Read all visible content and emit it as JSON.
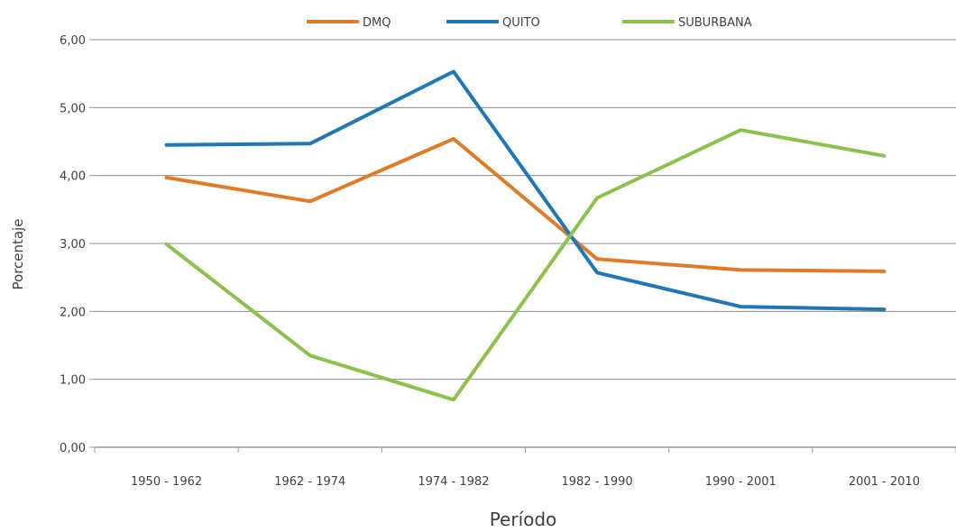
{
  "chart_data": {
    "type": "line",
    "title": "",
    "xlabel": "Período",
    "ylabel": "Porcentaje",
    "categories": [
      "1950 - 1962",
      "1962 - 1974",
      "1974 - 1982",
      "1982 - 1990",
      "1990 - 2001",
      "2001 - 2010"
    ],
    "ylim": [
      0,
      6
    ],
    "yticks": [
      "0,00",
      "1,00",
      "2,00",
      "3,00",
      "4,00",
      "5,00",
      "6,00"
    ],
    "grid": true,
    "legend": "top",
    "series": [
      {
        "name": "DMQ",
        "color": "#E07B28",
        "values": [
          3.97,
          3.62,
          4.54,
          2.77,
          2.61,
          2.59
        ]
      },
      {
        "name": "QUITO",
        "color": "#1F77B8",
        "values": [
          4.45,
          4.47,
          5.53,
          2.57,
          2.07,
          2.03
        ]
      },
      {
        "name": "SUBURBANA",
        "color": "#8BC34A",
        "values": [
          2.99,
          1.35,
          0.7,
          3.67,
          4.67,
          4.29
        ]
      }
    ]
  }
}
